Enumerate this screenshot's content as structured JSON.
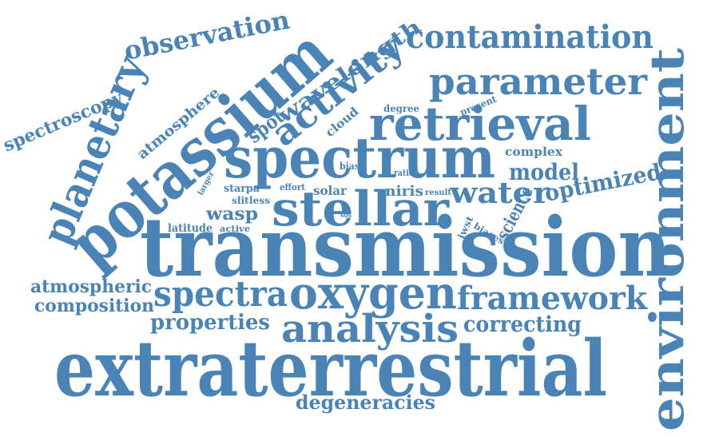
{
  "theme": {
    "word_color": "#4a84b6"
  },
  "words": {
    "transmission": "transmission",
    "extraterrestrial": "extraterrestrial",
    "potassium": "potassium",
    "spectrum": "spectrum",
    "stellar": "stellar",
    "environment": "environment",
    "retrieval": "retrieval",
    "planetary": "planetary",
    "activity": "activity",
    "parameter": "parameter",
    "contamination": "contamination",
    "oxygen": "oxygen",
    "analysis": "analysis",
    "spectra": "spectra",
    "framework": "framework",
    "observation": "observation",
    "wavelength": "wavelength",
    "spot": "spot",
    "water": "water",
    "model": "model",
    "optimized": "optimized",
    "science": "science",
    "properties": "properties",
    "correcting": "correcting",
    "degeneracies": "degeneracies",
    "atmospheric": "atmospheric",
    "composition": "composition",
    "spectroscopy": "spectroscopy",
    "atmosphere": "atmosphere",
    "cloud": "cloud",
    "degree": "degree",
    "present": "present",
    "complex": "complex",
    "wasp": "wasp",
    "solar": "solar",
    "niris": "niris",
    "latitude": "latitude",
    "active": "active",
    "slitless": "slitless",
    "starpa": "starpa",
    "effort": "effort",
    "larger": "larger",
    "bias": "bias",
    "ratio": "ratio",
    "result": "result",
    "jwst": "jwst",
    "biases": "biases",
    "sos": "sos"
  }
}
